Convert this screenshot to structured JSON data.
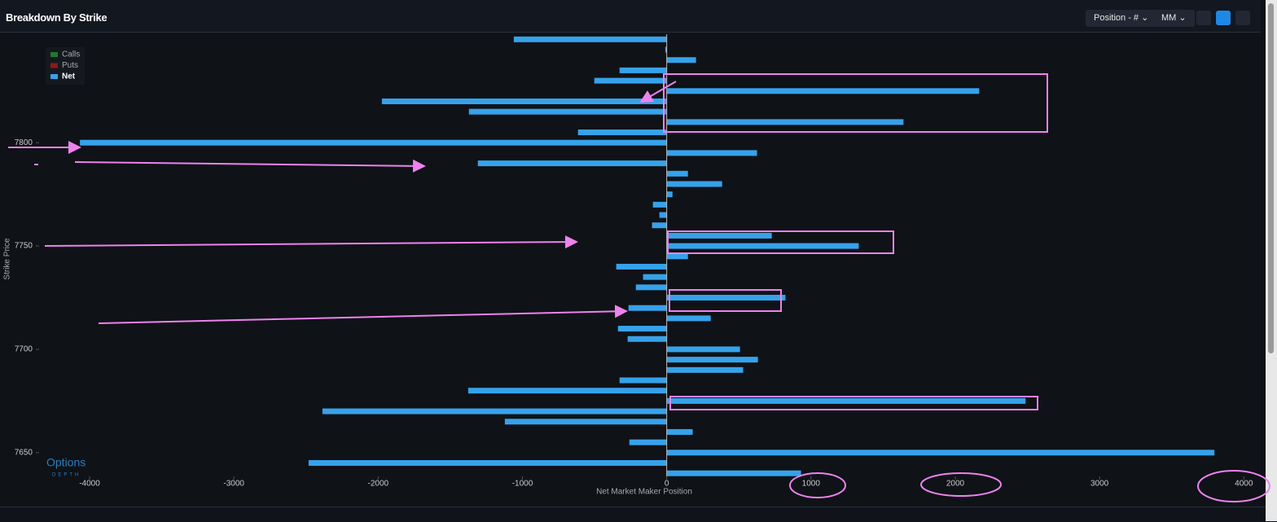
{
  "chart_data": {
    "type": "hbar",
    "title": "Breakdown By Strike",
    "x_label": "Net Market Maker Position",
    "y_label": "Strike Price",
    "y": [
      7850,
      7845,
      7840,
      7835,
      7830,
      7825,
      7820,
      7815,
      7810,
      7805,
      7800,
      7795,
      7790,
      7785,
      7780,
      7775,
      7770,
      7765,
      7760,
      7755,
      7750,
      7745,
      7740,
      7735,
      7730,
      7725,
      7720,
      7715,
      7710,
      7705,
      7700,
      7695,
      7690,
      7685,
      7680,
      7675,
      7670,
      7665,
      7660,
      7655,
      7650,
      7645,
      7640
    ],
    "legend": [
      {
        "name": "Calls",
        "color": "#1e7a2e"
      },
      {
        "name": "Puts",
        "color": "#8b1a1a"
      }
    ],
    "series": [
      {
        "name": "Net",
        "color": "#36a2eb",
        "values": [
          -1060,
          -10,
          203,
          -327,
          -502,
          2166,
          -1974,
          -1371,
          1641,
          -615,
          -4067,
          626,
          -1309,
          147,
          384,
          40,
          -96,
          -51,
          -102,
          728,
          1331,
          147,
          -350,
          -164,
          -214,
          823,
          -265,
          305,
          -338,
          -271,
          508,
          632,
          530,
          -327,
          -1376,
          2487,
          -2386,
          -1122,
          180,
          -259,
          3796,
          -2482,
          931
        ]
      }
    ],
    "xlim": [
      -4350,
      4100
    ],
    "xticks": [
      -4000,
      -3000,
      -2000,
      -1000,
      0,
      1000,
      2000,
      3000,
      4000
    ],
    "ylim": [
      7638.5,
      7852.5
    ],
    "yticks": [
      7650,
      7700,
      7750,
      7800
    ]
  },
  "toolbar": {
    "controls": [
      "Position - #",
      "MM"
    ]
  },
  "logo": {
    "text": "Options",
    "subtext": "DEPTH"
  }
}
